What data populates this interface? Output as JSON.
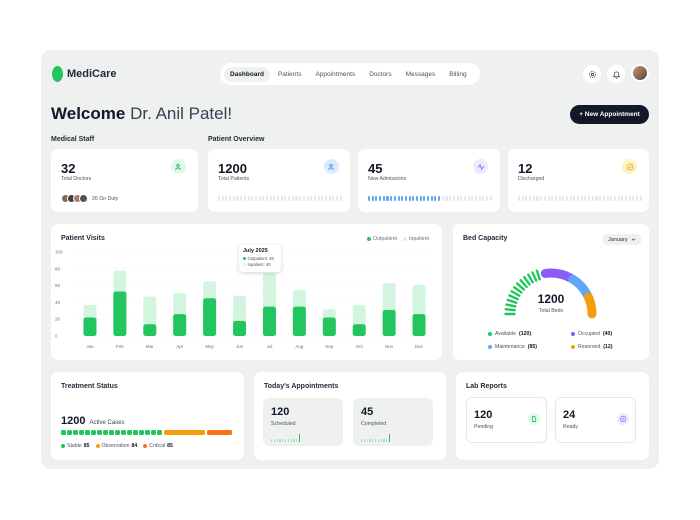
{
  "app": {
    "name": "MediCare"
  },
  "nav": {
    "items": [
      "Dashboard",
      "Patients",
      "Appointments",
      "Doctors",
      "Messages",
      "Billing"
    ],
    "active": 0
  },
  "header": {
    "welcome": "Welcome",
    "doctor": "Dr. Anil Patel!",
    "new_button": "+ New Appointment"
  },
  "sections": {
    "medical_staff": "Medical Staff",
    "patient_overview": "Patient Overview"
  },
  "staff": {
    "count": "32",
    "label": "Total Doctors",
    "on_duty": "26 On Duty"
  },
  "overview": [
    {
      "value": "1200",
      "label": "Total Patients",
      "icon": "users-icon",
      "color": "#60a5fa"
    },
    {
      "value": "45",
      "label": "New Admissions",
      "icon": "activity-icon",
      "color": "#8b5cf6"
    },
    {
      "value": "12",
      "label": "Discharged",
      "icon": "check-circle-icon",
      "color": "#f59e0b"
    }
  ],
  "admissions_progress": 0.6,
  "patient_visits": {
    "title": "Patient Visits",
    "legend": [
      "Outpatient",
      "Inpatient"
    ],
    "tooltip": {
      "title": "July 2025",
      "outpatient": "Outpatient: 35",
      "inpatient": "Inpatient: 40"
    }
  },
  "chart_data": {
    "type": "bar",
    "categories": [
      "Jan",
      "Feb",
      "Mar",
      "Apr",
      "May",
      "Jun",
      "Jul",
      "Aug",
      "Sep",
      "Oct",
      "Nov",
      "Dec"
    ],
    "series": [
      {
        "name": "Outpatient",
        "values": [
          22,
          53,
          14,
          26,
          45,
          18,
          35,
          35,
          22,
          14,
          31,
          26
        ]
      },
      {
        "name": "Inpatient",
        "values": [
          15,
          25,
          33,
          25,
          20,
          30,
          40,
          20,
          10,
          23,
          32,
          35
        ]
      }
    ],
    "stacked": true,
    "yticks": [
      0,
      20,
      40,
      60,
      80,
      100
    ],
    "ylim": [
      0,
      100
    ],
    "colors": {
      "Outpatient": "#22c55e",
      "Inpatient": "#d3f5df"
    }
  },
  "bed_capacity": {
    "title": "Bed Capacity",
    "select": "January",
    "total": "1200",
    "total_label": "Total Beds",
    "legend": [
      {
        "label": "Available",
        "value": "(120)",
        "color": "#22c55e"
      },
      {
        "label": "Occupied",
        "value": "(40)",
        "color": "#8b5cf6"
      },
      {
        "label": "Maintenance",
        "value": "(85)",
        "color": "#60a5fa"
      },
      {
        "label": "Reserved",
        "value": "(12)",
        "color": "#f59e0b"
      }
    ]
  },
  "treatment": {
    "title": "Treatment Status",
    "active_count": "1200",
    "active_label": "Active Cases",
    "legend": [
      {
        "label": "Stable",
        "value": "85",
        "color": "#22c55e"
      },
      {
        "label": "Observation",
        "value": "84",
        "color": "#f59e0b"
      },
      {
        "label": "Critical",
        "value": "85",
        "color": "#f97316"
      }
    ]
  },
  "appointments": {
    "title": "Today's Appointments",
    "items": [
      {
        "value": "120",
        "label": "Scheduled"
      },
      {
        "value": "45",
        "label": "Completed"
      }
    ]
  },
  "lab": {
    "title": "Lab Reports",
    "items": [
      {
        "value": "120",
        "label": "Pending",
        "icon": "file-icon",
        "color": "#22c55e"
      },
      {
        "value": "24",
        "label": "Ready",
        "icon": "check-square-icon",
        "color": "#8b5cf6"
      }
    ]
  }
}
